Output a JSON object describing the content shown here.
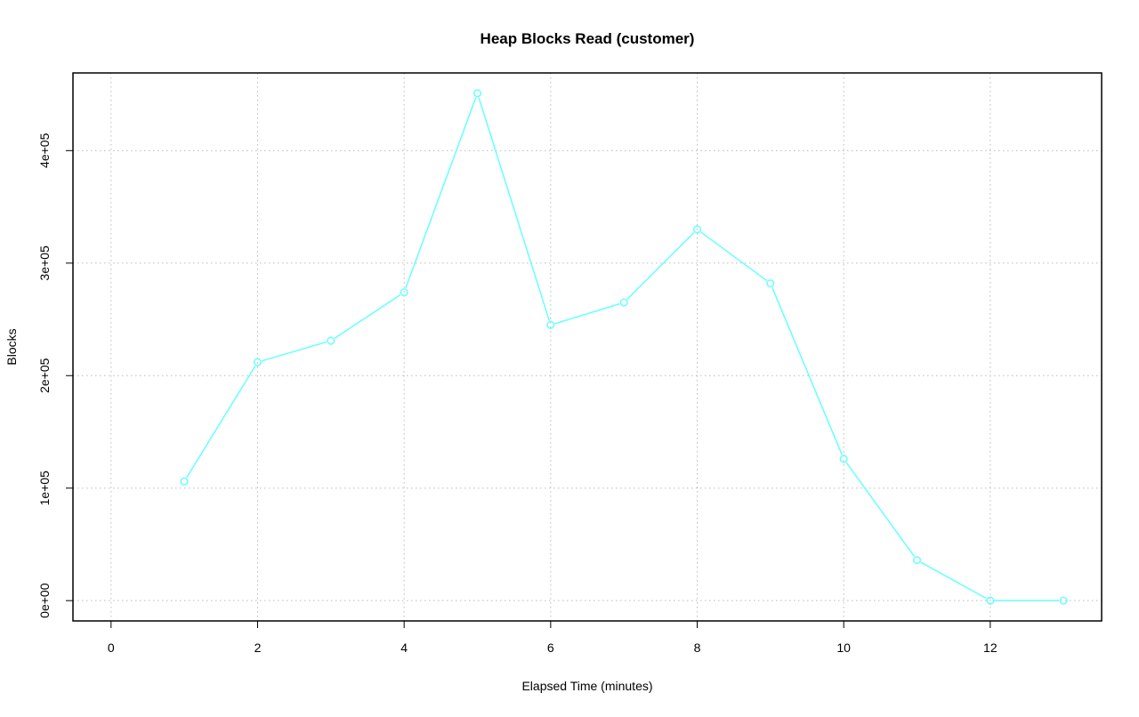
{
  "chart_data": {
    "type": "line",
    "title": "Heap Blocks Read (customer)",
    "xlabel": "Elapsed Time (minutes)",
    "ylabel": "Blocks",
    "xlim": [
      0,
      13
    ],
    "ylim": [
      0,
      451000
    ],
    "x_ticks": [
      0,
      2,
      4,
      6,
      8,
      10,
      12
    ],
    "x_tick_labels": [
      "0",
      "2",
      "4",
      "6",
      "8",
      "10",
      "12"
    ],
    "y_ticks": [
      0,
      100000,
      200000,
      300000,
      400000
    ],
    "y_tick_labels": [
      "0e+00",
      "1e+05",
      "2e+05",
      "3e+05",
      "4e+05"
    ],
    "grid": true,
    "grid_style": "dotted",
    "series": [
      {
        "color": "#66ffff",
        "marker": "open-circle",
        "x": [
          1,
          2,
          3,
          4,
          5,
          6,
          7,
          8,
          9,
          10,
          11,
          12,
          13
        ],
        "y": [
          106000,
          212000,
          231000,
          274000,
          451000,
          245000,
          265000,
          330000,
          282000,
          126000,
          36000,
          0,
          0
        ]
      }
    ]
  }
}
